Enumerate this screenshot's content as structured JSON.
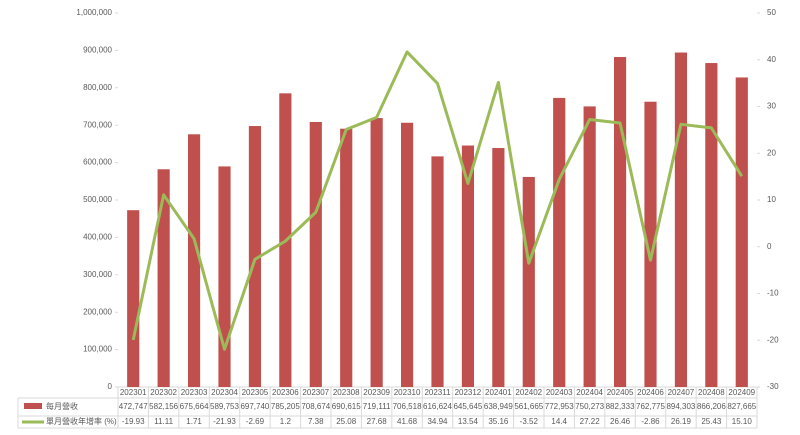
{
  "chart_data": {
    "type": "bar-line",
    "categories": [
      "202301",
      "202302",
      "202303",
      "202304",
      "202305",
      "202306",
      "202307",
      "202308",
      "202309",
      "202310",
      "202311",
      "202312",
      "202401",
      "202402",
      "202403",
      "202404",
      "202405",
      "202406",
      "202407",
      "202408",
      "202409"
    ],
    "series": [
      {
        "name": "每月營收",
        "type": "bar",
        "color": "#c0504d",
        "values": [
          472747,
          582156,
          675664,
          589753,
          697740,
          785205,
          708674,
          690615,
          719111,
          706518,
          616624,
          645645,
          638949,
          561665,
          772953,
          750273,
          882333,
          762775,
          894303,
          866206,
          827665
        ],
        "value_labels": [
          "472,747",
          "582,156",
          "675,664",
          "589,753",
          "697,740",
          "785,205",
          "708,674",
          "690,615",
          "719,111",
          "706,518",
          "616,624",
          "645,645",
          "638,949",
          "561,665",
          "772,953",
          "750,273",
          "882,333",
          "762,775",
          "894,303",
          "866,206",
          "827,665"
        ]
      },
      {
        "name": "單月營收年增率 (%)",
        "type": "line",
        "axis": "y2",
        "color": "#9bbb59",
        "values": [
          -19.93,
          11.11,
          1.71,
          -21.93,
          -2.69,
          1.2,
          7.38,
          25.08,
          27.68,
          41.68,
          34.94,
          13.54,
          35.16,
          -3.52,
          14.4,
          27.22,
          26.46,
          -2.86,
          26.19,
          25.43,
          15.1
        ],
        "value_labels": [
          "-19.93",
          "11.11",
          "1.71",
          "-21.93",
          "-2.69",
          "1.2",
          "7.38",
          "25.08",
          "27.68",
          "41.68",
          "34.94",
          "13.54",
          "35.16",
          "-3.52",
          "14.4",
          "27.22",
          "26.46",
          "-2.86",
          "26.19",
          "25.43",
          "15.10"
        ]
      }
    ],
    "ylim": [
      0,
      1000000
    ],
    "yticks": [
      {
        "value": 0,
        "label": "0"
      },
      {
        "value": 100000,
        "label": "100,000"
      },
      {
        "value": 200000,
        "label": "200,000"
      },
      {
        "value": 300000,
        "label": "300,000"
      },
      {
        "value": 400000,
        "label": "400,000"
      },
      {
        "value": 500000,
        "label": "500,000"
      },
      {
        "value": 600000,
        "label": "600,000"
      },
      {
        "value": 700000,
        "label": "700,000"
      },
      {
        "value": 800000,
        "label": "800,000"
      },
      {
        "value": 900000,
        "label": "900,000"
      },
      {
        "value": 1000000,
        "label": "1,000,000"
      }
    ],
    "y2lim": [
      -30,
      50
    ],
    "y2ticks": [
      -30,
      -20,
      -10,
      0,
      10,
      20,
      30,
      40,
      50
    ]
  }
}
